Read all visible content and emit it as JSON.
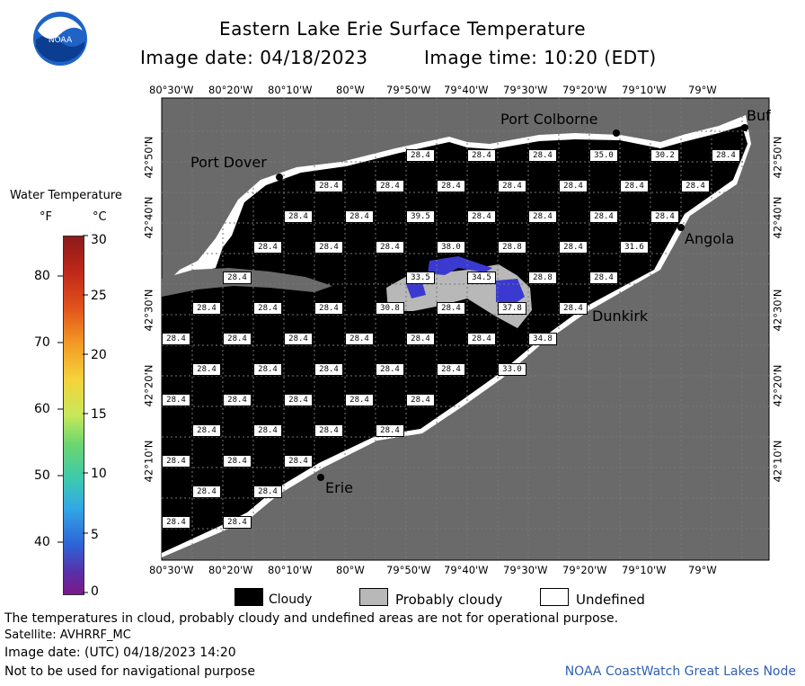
{
  "header": {
    "title": "Eastern Lake Erie Surface Temperature",
    "image_date": "Image date: 04/18/2023",
    "image_time": "Image time: 10:20 (EDT)",
    "logo_text": "NOAA"
  },
  "colorbar": {
    "title": "Water Temperature",
    "unit_f": "°F",
    "unit_c": "°C",
    "f_ticks": [
      "80",
      "70",
      "60",
      "50",
      "40"
    ],
    "c_ticks": [
      "30",
      "25",
      "20",
      "15",
      "10",
      "5",
      "0"
    ]
  },
  "axes": {
    "lon_labels": [
      "80°30'W",
      "80°20'W",
      "80°10'W",
      "80°W",
      "79°50'W",
      "79°40'W",
      "79°30'W",
      "79°20'W",
      "79°10'W",
      "79°W"
    ],
    "lat_labels": [
      "42°50'N",
      "42°40'N",
      "42°30'N",
      "42°20'N",
      "42°10'N"
    ]
  },
  "places": {
    "port_colborne": "Port Colborne",
    "port_dover": "Port Dover",
    "angola": "Angola",
    "dunkirk": "Dunkirk",
    "erie": "Erie",
    "buffalo": "Buf"
  },
  "temps": {
    "r1": [
      "28.4",
      "28.4",
      "28.4",
      "35.0",
      "30.2",
      "28.4"
    ],
    "r2": [
      "28.4",
      "28.4",
      "28.4",
      "28.4",
      "28.4",
      "28.4",
      "28.4"
    ],
    "r3": [
      "28.4",
      "28.4",
      "39.5",
      "28.4",
      "28.4",
      "28.4",
      "28.4"
    ],
    "r4": [
      "28.4",
      "28.4",
      "28.4",
      "38.0",
      "28.8",
      "28.4",
      "31.6"
    ],
    "r5": [
      "28.4",
      "33.5",
      "34.5",
      "28.8",
      "28.4"
    ],
    "r6": [
      "28.4",
      "28.4",
      "28.4",
      "30.8",
      "28.4",
      "37.8",
      "28.4"
    ],
    "r7": [
      "28.4",
      "28.4",
      "28.4",
      "28.4",
      "28.4",
      "28.4",
      "34.8"
    ],
    "r8": [
      "28.4",
      "28.4",
      "28.4",
      "28.4",
      "28.4",
      "33.0"
    ],
    "r9": [
      "28.4",
      "28.4",
      "28.4",
      "28.4",
      "28.4"
    ],
    "r10": [
      "28.4",
      "28.4",
      "28.4",
      "28.4"
    ],
    "r11": [
      "28.4",
      "28.4",
      "28.4"
    ],
    "r12": [
      "28.4",
      "28.4"
    ],
    "r13": [
      "28.4",
      "28.4"
    ]
  },
  "legend": {
    "cloudy": "Cloudy",
    "probably_cloudy": "Probably cloudy",
    "undefined": "Undefined"
  },
  "footer": {
    "disclaimer": "The temperatures in cloud, probably cloudy and undefined areas are not for operational purpose.",
    "satellite": "Satellite: AVHRRF_MC",
    "utc_date": "Image date: (UTC) 04/18/2023  14:20",
    "nav_warning": "Not to be used for navigational purpose",
    "credit": "NOAA CoastWatch Great Lakes Node"
  },
  "colors": {
    "land": "#6a6a6a",
    "cloud": "#000000",
    "probably_cloudy": "#b8b8b8",
    "undefined": "#ffffff",
    "credit": "#2f5fb3"
  }
}
